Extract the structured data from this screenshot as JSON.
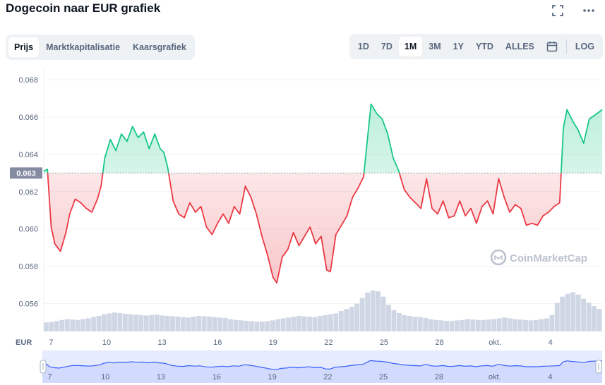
{
  "header": {
    "title": "Dogecoin naar EUR grafiek",
    "icons": [
      "fullscreen-icon",
      "more-icon"
    ]
  },
  "tabs": [
    {
      "label": "Prijs",
      "active": true
    },
    {
      "label": "Marktkapitalisatie",
      "active": false
    },
    {
      "label": "Kaarsgrafiek",
      "active": false
    }
  ],
  "ranges": [
    {
      "label": "1D",
      "active": false
    },
    {
      "label": "7D",
      "active": false
    },
    {
      "label": "1M",
      "active": true
    },
    {
      "label": "3M",
      "active": false
    },
    {
      "label": "1Y",
      "active": false
    },
    {
      "label": "YTD",
      "active": false
    },
    {
      "label": "ALLES",
      "active": false
    }
  ],
  "log_label": "LOG",
  "currency_label": "EUR",
  "watermark": "CoinMarketCap",
  "colors": {
    "up": "#16c784",
    "down": "#ea3943",
    "volume": "#cfd6e4",
    "navigator": "#3861fb"
  },
  "chart_data": {
    "type": "line",
    "baseline": 0.063,
    "baseline_label": "0.063",
    "ylim": [
      0.0545,
      0.0685
    ],
    "y_ticks": [
      "0.056",
      "0.058",
      "0.060",
      "0.062",
      "0.064",
      "0.066",
      "0.068"
    ],
    "x_ticks": [
      "7",
      "10",
      "13",
      "16",
      "19",
      "22",
      "25",
      "28",
      "okt.",
      "4"
    ],
    "x_tick_pos": [
      7,
      10,
      13,
      16,
      19,
      22,
      25,
      28,
      31,
      34
    ],
    "xlim": [
      6.6,
      36.8
    ],
    "x": [
      6.6,
      6.8,
      7.0,
      7.2,
      7.5,
      7.8,
      8.0,
      8.3,
      8.6,
      8.9,
      9.2,
      9.5,
      9.7,
      9.9,
      10.2,
      10.5,
      10.8,
      11.1,
      11.4,
      11.7,
      12.0,
      12.3,
      12.6,
      12.9,
      13.1,
      13.3,
      13.6,
      13.9,
      14.2,
      14.5,
      14.8,
      15.1,
      15.4,
      15.7,
      16.0,
      16.3,
      16.6,
      16.9,
      17.2,
      17.5,
      17.8,
      18.1,
      18.4,
      18.7,
      19.0,
      19.2,
      19.5,
      19.8,
      20.1,
      20.4,
      20.7,
      21.0,
      21.3,
      21.6,
      21.9,
      22.1,
      22.4,
      22.7,
      23.0,
      23.3,
      23.6,
      23.9,
      24.1,
      24.3,
      24.6,
      24.9,
      25.2,
      25.5,
      25.8,
      26.1,
      26.4,
      26.7,
      27.0,
      27.3,
      27.6,
      27.9,
      28.2,
      28.5,
      28.8,
      29.1,
      29.4,
      29.7,
      30.0,
      30.3,
      30.6,
      30.9,
      31.2,
      31.5,
      31.8,
      32.1,
      32.4,
      32.7,
      33.0,
      33.3,
      33.6,
      33.9,
      34.2,
      34.5,
      34.7,
      34.9,
      35.2,
      35.5,
      35.8,
      36.1,
      36.4,
      36.8
    ],
    "y": [
      0.0631,
      0.0632,
      0.0601,
      0.0592,
      0.0588,
      0.0598,
      0.0608,
      0.0616,
      0.0614,
      0.0611,
      0.0609,
      0.0616,
      0.0623,
      0.0638,
      0.0648,
      0.0642,
      0.0651,
      0.0647,
      0.0655,
      0.0649,
      0.0652,
      0.0643,
      0.0651,
      0.0643,
      0.0641,
      0.0633,
      0.0615,
      0.0608,
      0.0606,
      0.0614,
      0.0609,
      0.0612,
      0.0601,
      0.0597,
      0.0603,
      0.0608,
      0.0603,
      0.0612,
      0.0608,
      0.0623,
      0.0617,
      0.0608,
      0.0596,
      0.0586,
      0.0574,
      0.0571,
      0.0585,
      0.0589,
      0.0598,
      0.0591,
      0.0596,
      0.0601,
      0.0592,
      0.0596,
      0.0578,
      0.0577,
      0.0597,
      0.0602,
      0.0607,
      0.0617,
      0.0622,
      0.0628,
      0.0648,
      0.0667,
      0.0662,
      0.0659,
      0.0651,
      0.0638,
      0.0631,
      0.0621,
      0.0617,
      0.0614,
      0.0611,
      0.0627,
      0.0611,
      0.0608,
      0.0615,
      0.0606,
      0.0607,
      0.0615,
      0.0607,
      0.0611,
      0.0603,
      0.0612,
      0.0615,
      0.0608,
      0.0627,
      0.0617,
      0.0609,
      0.0613,
      0.0611,
      0.0602,
      0.0603,
      0.0602,
      0.0607,
      0.0609,
      0.0612,
      0.0614,
      0.0654,
      0.0664,
      0.0658,
      0.0653,
      0.0646,
      0.0659,
      0.0661,
      0.0664
    ],
    "volume": [
      0.22,
      0.23,
      0.25,
      0.28,
      0.3,
      0.29,
      0.28,
      0.3,
      0.32,
      0.35,
      0.38,
      0.42,
      0.44,
      0.46,
      0.45,
      0.43,
      0.42,
      0.41,
      0.4,
      0.39,
      0.4,
      0.41,
      0.39,
      0.38,
      0.37,
      0.36,
      0.35,
      0.34,
      0.36,
      0.38,
      0.37,
      0.36,
      0.35,
      0.34,
      0.33,
      0.3,
      0.28,
      0.27,
      0.26,
      0.25,
      0.24,
      0.24,
      0.25,
      0.27,
      0.3,
      0.32,
      0.34,
      0.36,
      0.38,
      0.37,
      0.36,
      0.35,
      0.38,
      0.4,
      0.42,
      0.44,
      0.5,
      0.55,
      0.6,
      0.68,
      0.82,
      0.95,
      1.0,
      0.98,
      0.85,
      0.65,
      0.52,
      0.45,
      0.4,
      0.38,
      0.36,
      0.35,
      0.33,
      0.3,
      0.28,
      0.27,
      0.26,
      0.26,
      0.27,
      0.28,
      0.3,
      0.29,
      0.28,
      0.28,
      0.29,
      0.3,
      0.32,
      0.34,
      0.32,
      0.3,
      0.29,
      0.28,
      0.27,
      0.28,
      0.3,
      0.32,
      0.4,
      0.7,
      0.85,
      0.92,
      0.96,
      0.9,
      0.8,
      0.7,
      0.62,
      0.55
    ]
  }
}
